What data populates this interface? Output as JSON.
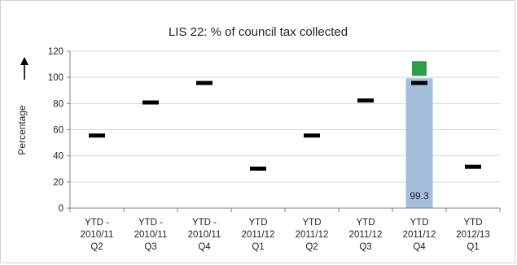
{
  "chart_data": {
    "type": "bar",
    "title": "LIS 22: % of council tax collected",
    "ylabel": "Percentage",
    "xlabel": "",
    "ylim": [
      0,
      120
    ],
    "yticks": [
      0,
      20,
      40,
      60,
      80,
      100,
      120
    ],
    "grid": true,
    "legend": "none",
    "categories": [
      [
        "YTD -",
        "2010/11",
        "Q2"
      ],
      [
        "YTD -",
        "2010/11",
        "Q3"
      ],
      [
        "YTD -",
        "2010/11",
        "Q4"
      ],
      [
        "YTD",
        "2011/12",
        "Q1"
      ],
      [
        "YTD",
        "2011/12",
        "Q2"
      ],
      [
        "YTD",
        "2011/12",
        "Q3"
      ],
      [
        "YTD",
        "2011/12",
        "Q4"
      ],
      [
        "YTD",
        "2012/13",
        "Q1"
      ]
    ],
    "series": [
      {
        "kind": "bar",
        "color": "#a3bfdc",
        "values": [
          null,
          null,
          null,
          null,
          null,
          null,
          99.3,
          null
        ],
        "data_labels": [
          "",
          "",
          "",
          "",
          "",
          "",
          "99.3",
          ""
        ]
      },
      {
        "kind": "marker",
        "marker": "dash",
        "color": "#000000",
        "values": [
          55.5,
          80.8,
          95.7,
          30.2,
          55.5,
          82.3,
          95.7,
          31.6
        ]
      },
      {
        "kind": "marker",
        "marker": "square",
        "color": "#2e9e4c",
        "values": [
          null,
          null,
          null,
          null,
          null,
          null,
          106.8,
          null
        ]
      }
    ]
  },
  "icons": {
    "axis_arrow": "up-arrow-icon"
  }
}
